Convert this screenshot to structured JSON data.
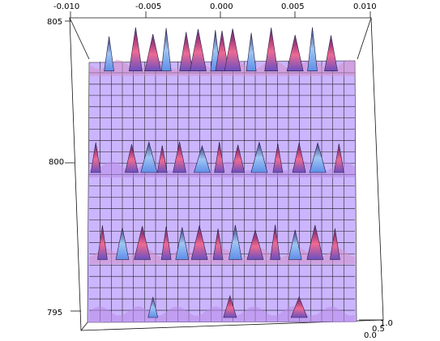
{
  "chart_data": {
    "type": "surface3d",
    "title": "",
    "xlabel": "",
    "ylabel": "",
    "zlabel": "",
    "xlim": [
      -0.01,
      0.01
    ],
    "ylim": [
      795,
      805
    ],
    "zlim": [
      0.0,
      1.0
    ],
    "x_ticks": [
      "-0.010",
      "-0.005",
      "0.000",
      "0.005",
      "0.010"
    ],
    "y_ticks": [
      "805",
      "800",
      "795"
    ],
    "z_ticks": [
      "0.0",
      "0.5",
      "1.0"
    ],
    "surface_color": "#cdb3ff",
    "mesh_color": "#1a1a1a",
    "ridges": [
      {
        "y": 803.5,
        "peak_height": 1.0,
        "peaks_x": [
          -0.0085,
          -0.0065,
          -0.0052,
          -0.0042,
          -0.0027,
          -0.0018,
          -0.0005,
          0.0,
          0.0008,
          0.0022,
          0.0037,
          0.0055,
          0.0068,
          0.0082
        ]
      },
      {
        "y": 800.0,
        "peak_height": 0.5,
        "peaks_x": [
          -0.0095,
          -0.0068,
          -0.0055,
          -0.0045,
          -0.0032,
          -0.0015,
          -0.0002,
          0.0012,
          0.0028,
          0.0042,
          0.0058,
          0.0072,
          0.0088
        ]
      },
      {
        "y": 797.0,
        "peak_height": 0.65,
        "peaks_x": [
          -0.009,
          -0.0075,
          -0.006,
          -0.0042,
          -0.003,
          -0.0017,
          -0.0003,
          0.001,
          0.0025,
          0.004,
          0.0055,
          0.007,
          0.0085
        ]
      },
      {
        "y": 795.0,
        "peak_height": 0.15,
        "peaks_x": [
          -0.0052,
          0.0006,
          0.0058
        ]
      }
    ],
    "view": "top"
  }
}
